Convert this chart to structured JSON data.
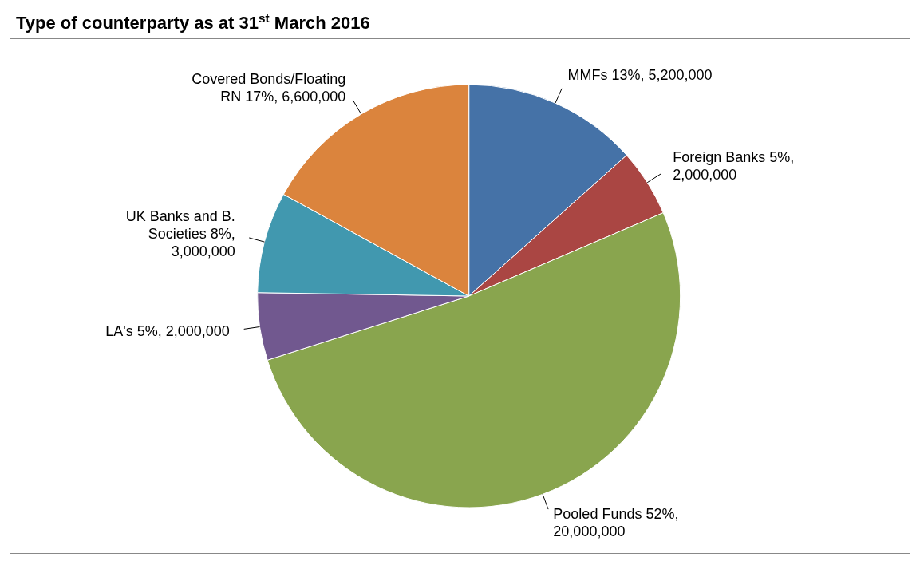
{
  "chart_data": {
    "type": "pie",
    "title": "Type of counterparty as at 31$^{st}$ March 2016",
    "categories": [
      "MMFs",
      "Foreign Banks",
      "Pooled Funds",
      "LA's",
      "UK Banks and B. Societies",
      "Covered Bonds/Floating RN"
    ],
    "values": [
      5200000,
      2000000,
      20000000,
      2000000,
      3000000,
      6600000
    ],
    "colors": [
      "#4572a7",
      "#aa4643",
      "#89a54e",
      "#71588f",
      "#4198af",
      "#db843d"
    ],
    "value_labels": [
      "13%, 5,200,000",
      "5%, 2,000,000",
      "52%, 20,000,000",
      "5%, 2,000,000",
      "8%, 3,000,000",
      "17%, 6,600,000"
    ],
    "legend": false
  }
}
